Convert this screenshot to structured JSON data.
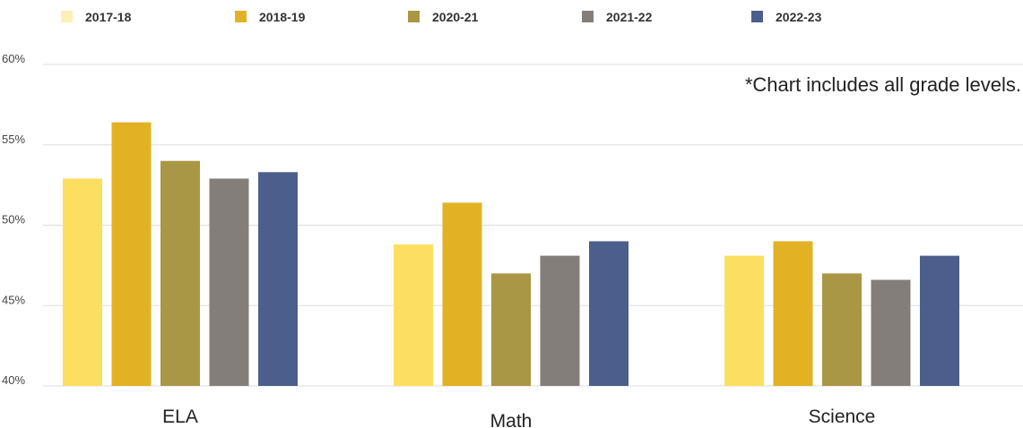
{
  "note": "*Chart includes all grade levels.",
  "chart_data": {
    "type": "bar",
    "categories": [
      "ELA",
      "Math",
      "Science"
    ],
    "series": [
      {
        "name": "2017-18",
        "values": [
          52.9,
          48.8,
          48.1
        ]
      },
      {
        "name": "2018-19",
        "values": [
          56.4,
          51.4,
          49.0
        ]
      },
      {
        "name": "2020-21",
        "values": [
          54.0,
          47.0,
          47.0
        ]
      },
      {
        "name": "2021-22",
        "values": [
          52.9,
          48.1,
          46.6
        ]
      },
      {
        "name": "2022-23",
        "values": [
          53.3,
          49.0,
          48.1
        ]
      }
    ],
    "colors": [
      "#FCDF60",
      "#E3B224",
      "#AA9745",
      "#837E79",
      "#4C5E8B"
    ],
    "legend_colors": [
      "#FCF0B6",
      "#E3B224",
      "#AA9745",
      "#837E79",
      "#4C5E8B"
    ],
    "ylim": [
      40,
      60
    ],
    "yticks": [
      "40%",
      "45%",
      "50%",
      "55%",
      "60%"
    ],
    "grid": true,
    "legend": "top-left"
  }
}
